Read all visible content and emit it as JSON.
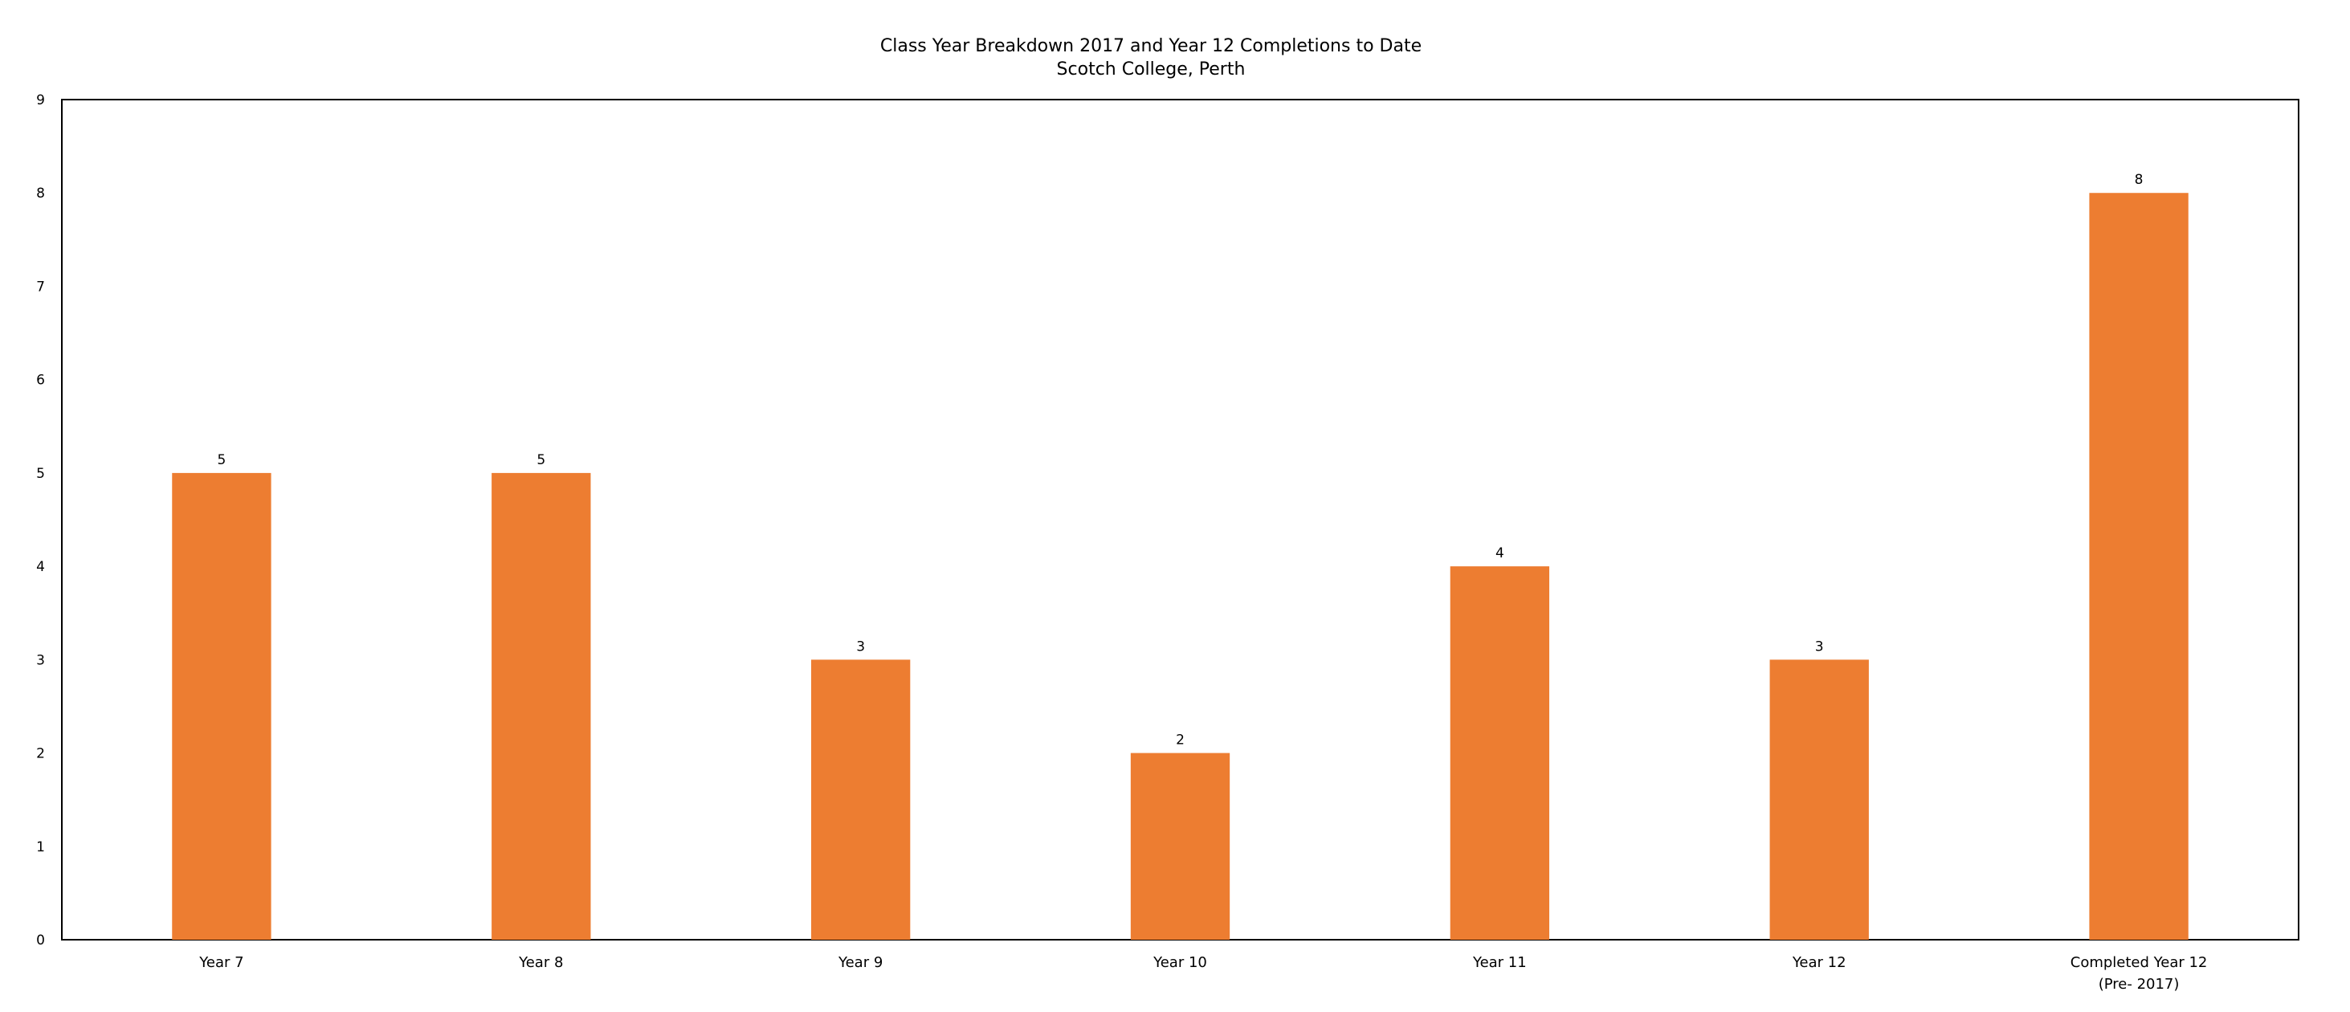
{
  "chart_data": {
    "type": "bar",
    "title": "Class Year Breakdown 2017 and Year 12 Completions to Date",
    "subtitle": "Scotch College, Perth",
    "xlabel": "",
    "ylabel": "",
    "categories": [
      [
        "Year 7"
      ],
      [
        "Year 8"
      ],
      [
        "Year 9"
      ],
      [
        "Year 10"
      ],
      [
        "Year 11"
      ],
      [
        "Year 12"
      ],
      [
        "Completed Year 12",
        "(Pre- 2017)"
      ]
    ],
    "values": [
      5,
      5,
      3,
      2,
      4,
      3,
      8
    ],
    "data_labels": [
      "5",
      "5",
      "3",
      "2",
      "4",
      "3",
      "8"
    ],
    "ylim": [
      0,
      9
    ],
    "yticks": [
      0,
      1,
      2,
      3,
      4,
      5,
      6,
      7,
      8,
      9
    ],
    "grid": false,
    "legend": "none",
    "bar_color": "#ED7D31",
    "axis_color": "#000000"
  }
}
